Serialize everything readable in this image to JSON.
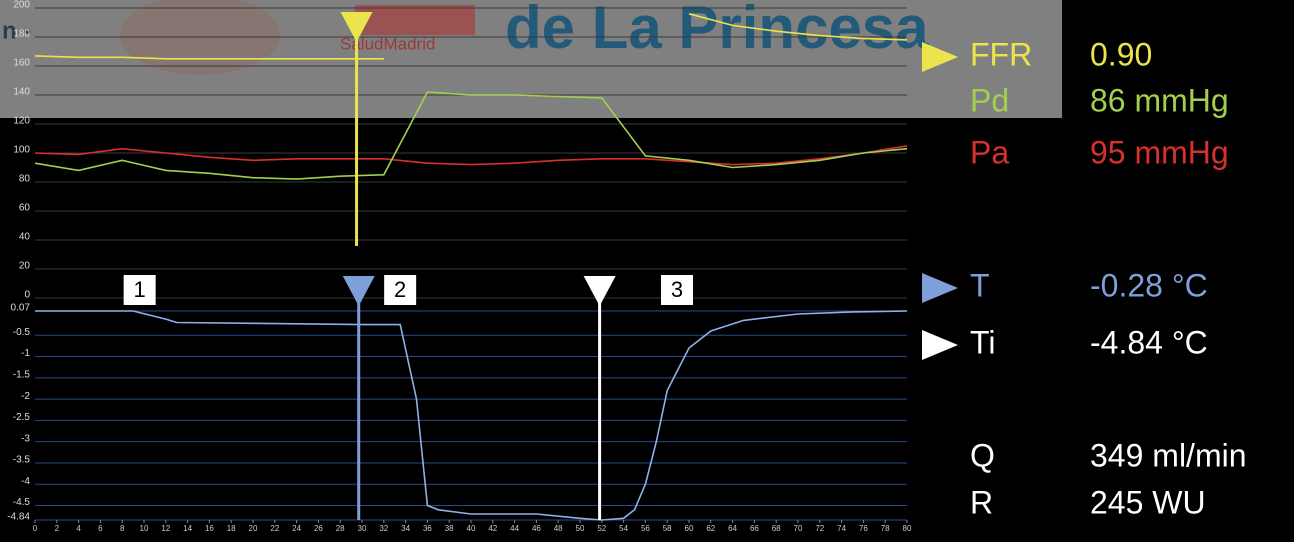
{
  "watermark": {
    "prefix": "n -",
    "sub": "SaludMadrid",
    "title": "de La Princesa"
  },
  "chart_data": [
    {
      "type": "line",
      "x": [
        0,
        4,
        8,
        12,
        16,
        20,
        24,
        28,
        32,
        36,
        40,
        44,
        48,
        52,
        56,
        60,
        64,
        68,
        72,
        76,
        80
      ],
      "xlim": [
        0,
        80
      ],
      "ylim": [
        0,
        200
      ],
      "yticks": [
        0,
        20,
        40,
        60,
        80,
        100,
        120,
        140,
        160,
        180,
        200
      ],
      "grid": true,
      "series": [
        {
          "color": "#d8302c",
          "values": [
            100,
            99,
            103,
            100,
            97,
            95,
            96,
            96,
            96,
            93,
            92,
            93,
            95,
            96,
            96,
            94,
            92,
            93,
            96,
            100,
            105
          ]
        },
        {
          "color": "#a2d04e",
          "values": [
            93,
            88,
            95,
            88,
            86,
            83,
            82,
            84,
            85,
            142,
            140,
            140,
            139,
            138,
            98,
            95,
            90,
            92,
            95,
            100,
            103
          ]
        },
        {
          "color": "#ece44c",
          "values": [
            167,
            166,
            166,
            165,
            165,
            165,
            165,
            165,
            165,
            null,
            null,
            null,
            null,
            null,
            null,
            196,
            188,
            184,
            181,
            179,
            178
          ]
        }
      ],
      "markers": [
        {
          "x": 29.5,
          "color": "#ece44c"
        }
      ]
    },
    {
      "type": "line",
      "x": [
        0,
        9,
        12,
        13,
        20,
        30,
        33.5,
        35,
        36,
        37,
        40,
        46,
        50,
        52,
        54,
        55,
        56,
        57,
        58,
        60,
        62,
        65,
        70,
        75,
        80
      ],
      "xlim": [
        0,
        80
      ],
      "xticks": [
        0,
        2,
        4,
        6,
        8,
        10,
        12,
        14,
        16,
        18,
        20,
        22,
        24,
        26,
        28,
        30,
        32,
        34,
        36,
        38,
        40,
        42,
        44,
        46,
        48,
        50,
        52,
        54,
        56,
        58,
        60,
        62,
        64,
        66,
        68,
        70,
        72,
        74,
        76,
        78,
        80
      ],
      "ylim": [
        -4.84,
        0.07
      ],
      "yticks": [
        0.07,
        -0.5,
        -1,
        -1.5,
        -2,
        -2.5,
        -3,
        -3.5,
        -4,
        -4.5,
        -4.84
      ],
      "grid": true,
      "series": [
        {
          "color": "#8fb0e8",
          "values": [
            0.07,
            0.07,
            -0.12,
            -0.2,
            -0.22,
            -0.25,
            -0.25,
            -2,
            -4.5,
            -4.6,
            -4.7,
            -4.7,
            -4.8,
            -4.84,
            -4.8,
            -4.6,
            -4,
            -3,
            -1.8,
            -0.8,
            -0.4,
            -0.15,
            0,
            0.05,
            0.07
          ]
        }
      ],
      "markers": [
        {
          "x": 29.7,
          "color": "#7e9fd8"
        },
        {
          "x": 51.8,
          "color": "#ffffff"
        }
      ],
      "annotations": [
        {
          "x": 9.6,
          "text": "1"
        },
        {
          "x": 33.5,
          "text": "2"
        },
        {
          "x": 58.9,
          "text": "3"
        }
      ]
    }
  ],
  "readouts": [
    {
      "label": "FFR",
      "value": "0.90",
      "color": "#ece44c",
      "marker": true
    },
    {
      "label": "Pd",
      "value": "86 mmHg",
      "color": "#a2d04e",
      "marker": false
    },
    {
      "label": "Pa",
      "value": "95 mmHg",
      "color": "#d8302c",
      "marker": false
    },
    {
      "label": "T",
      "value": "-0.28 °C",
      "color": "#7e9fd8",
      "marker": true
    },
    {
      "label": "Ti",
      "value": "-4.84 °C",
      "color": "#ffffff",
      "marker": true
    },
    {
      "label": "Q",
      "value": "349 ml/min",
      "color": "#ffffff",
      "marker": false
    },
    {
      "label": "R",
      "value": "245 WU",
      "color": "#ffffff",
      "marker": false
    }
  ]
}
